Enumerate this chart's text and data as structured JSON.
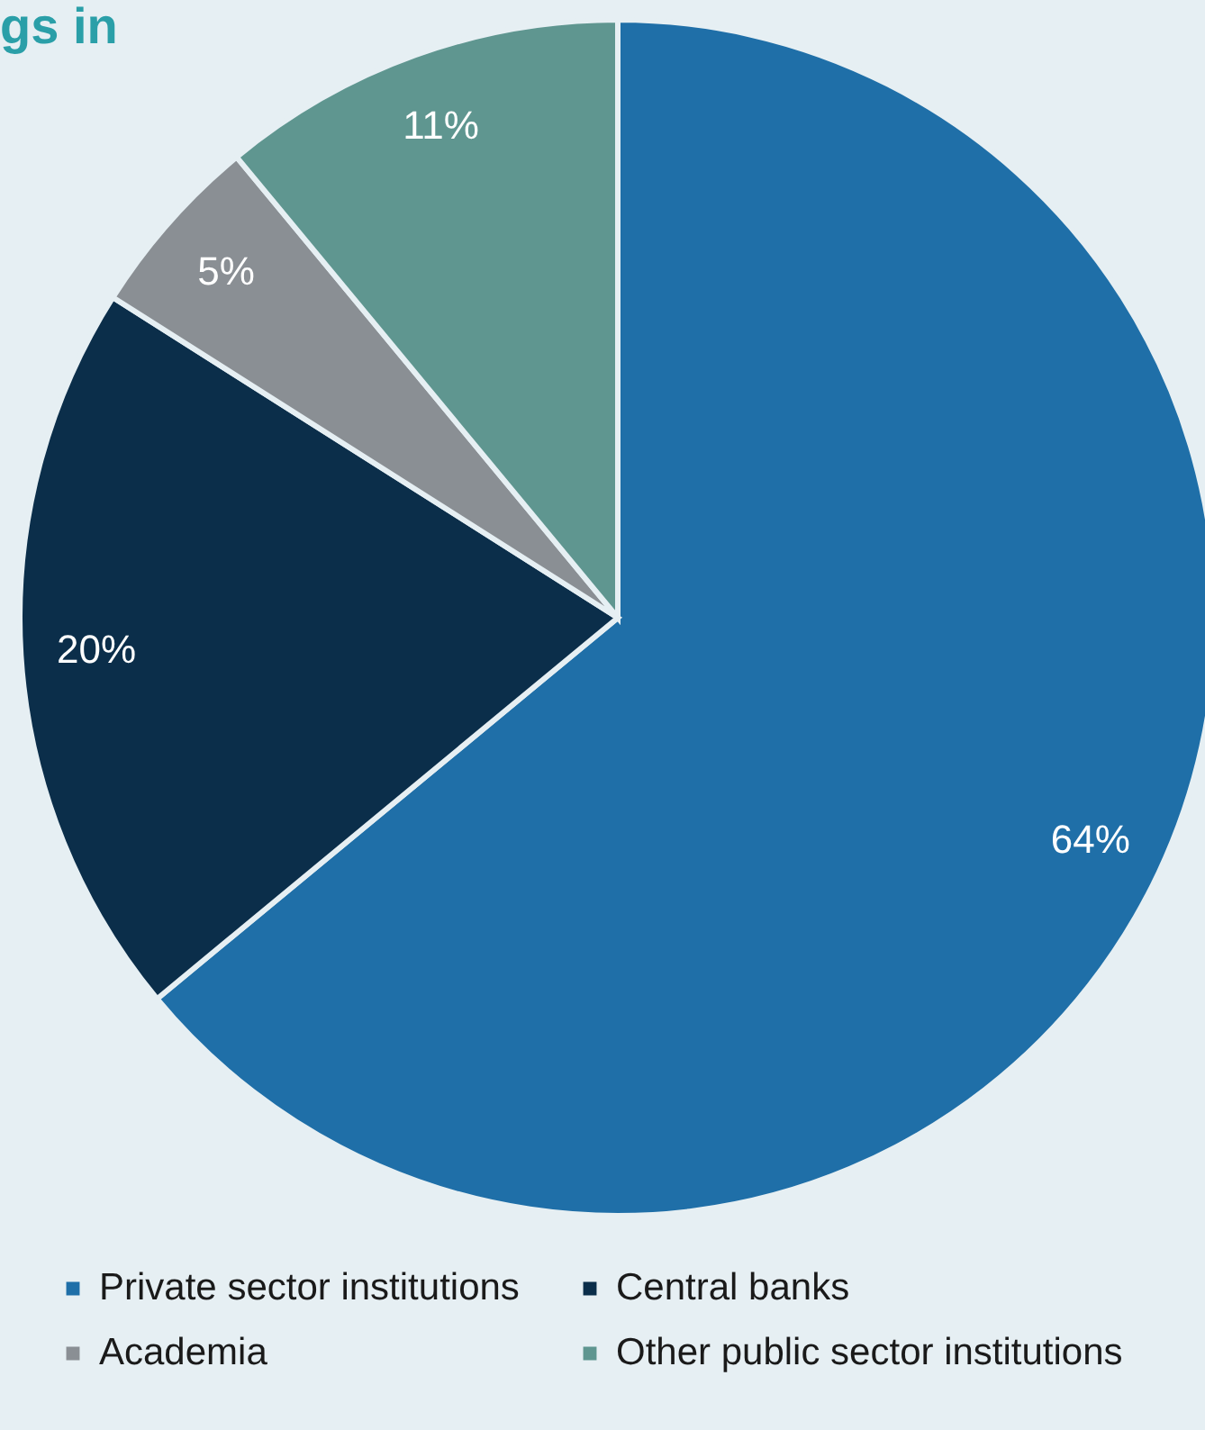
{
  "chart_data": {
    "type": "pie",
    "title": "gs in",
    "categories": [
      "Private sector institutions",
      "Central banks",
      "Academia",
      "Other public sector institutions"
    ],
    "values": [
      64,
      20,
      5,
      11
    ],
    "colors": [
      "#1f6fa8",
      "#0b2e4a",
      "#8a8f94",
      "#5f9690"
    ],
    "value_labels": [
      "64%",
      "20%",
      "5%",
      "11%"
    ],
    "legend": "bottom"
  }
}
